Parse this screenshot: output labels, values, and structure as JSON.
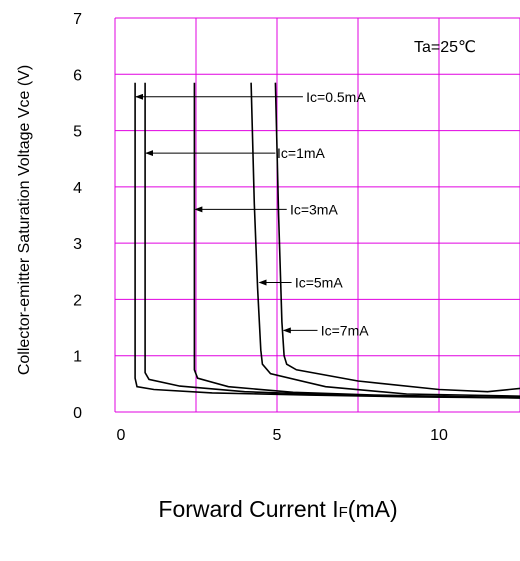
{
  "chart_data": {
    "type": "line",
    "title": "",
    "condition": "Ta=25℃",
    "xlabel_main": "Forward Current I",
    "xlabel_sub": "F",
    "xlabel_unit": "(mA)",
    "ylabel": "Collector-emitter Saturation Voltage Vce (V)",
    "xlim": [
      0,
      12.5
    ],
    "ylim": [
      0,
      7
    ],
    "xticks": [
      "0",
      "5",
      "10"
    ],
    "xtick_values": [
      0,
      5,
      10
    ],
    "yticks": [
      "0",
      "1",
      "2",
      "3",
      "4",
      "5",
      "6",
      "7"
    ],
    "ytick_values": [
      0,
      1,
      2,
      3,
      4,
      5,
      6,
      7
    ],
    "grid": true,
    "grid_color": "#e000e0",
    "line_color": "#000000",
    "series": [
      {
        "name": "Ic=0.5mA",
        "x": [
          0.62,
          0.62,
          0.68,
          1.2,
          3,
          6,
          9,
          12.5
        ],
        "y": [
          5.85,
          0.6,
          0.45,
          0.4,
          0.34,
          0.3,
          0.27,
          0.25
        ]
      },
      {
        "name": "Ic=1mA",
        "x": [
          0.93,
          0.93,
          1.05,
          2,
          4,
          7,
          10,
          12.5
        ],
        "y": [
          5.85,
          0.7,
          0.58,
          0.46,
          0.36,
          0.3,
          0.27,
          0.25
        ]
      },
      {
        "name": "Ic=3mA",
        "x": [
          2.45,
          2.45,
          2.55,
          3.5,
          5.5,
          8,
          11,
          12.5
        ],
        "y": [
          5.85,
          0.75,
          0.6,
          0.45,
          0.35,
          0.3,
          0.27,
          0.26
        ]
      },
      {
        "name": "Ic=5mA",
        "x": [
          4.2,
          4.3,
          4.4,
          4.5,
          4.55,
          4.8,
          6.5,
          9,
          12.5
        ],
        "y": [
          5.85,
          3.7,
          2.2,
          1.1,
          0.85,
          0.68,
          0.45,
          0.32,
          0.28
        ]
      },
      {
        "name": "Ic=7mA",
        "x": [
          4.95,
          5.05,
          5.15,
          5.22,
          5.3,
          5.6,
          7.5,
          10,
          11.5,
          12.5
        ],
        "y": [
          5.85,
          3.5,
          1.6,
          1.0,
          0.85,
          0.75,
          0.55,
          0.4,
          0.36,
          0.42
        ]
      }
    ],
    "annotations": [
      {
        "label": "Ic=0.5mA",
        "arrow_from": [
          5.8,
          5.6
        ],
        "arrow_to": [
          0.62,
          5.6
        ],
        "text_at": [
          5.9,
          5.6
        ]
      },
      {
        "label": "Ic=1mA",
        "arrow_from": [
          4.95,
          4.6
        ],
        "arrow_to": [
          0.93,
          4.6
        ],
        "text_at": [
          5.0,
          4.6
        ]
      },
      {
        "label": "Ic=3mA",
        "arrow_from": [
          5.3,
          3.6
        ],
        "arrow_to": [
          2.45,
          3.6
        ],
        "text_at": [
          5.4,
          3.6
        ]
      },
      {
        "label": "Ic=5mA",
        "arrow_from": [
          5.45,
          2.3
        ],
        "arrow_to": [
          4.43,
          2.3
        ],
        "text_at": [
          5.55,
          2.3
        ]
      },
      {
        "label": "Ic=7mA",
        "arrow_from": [
          6.25,
          1.45
        ],
        "arrow_to": [
          5.18,
          1.45
        ],
        "text_at": [
          6.35,
          1.45
        ]
      }
    ]
  }
}
